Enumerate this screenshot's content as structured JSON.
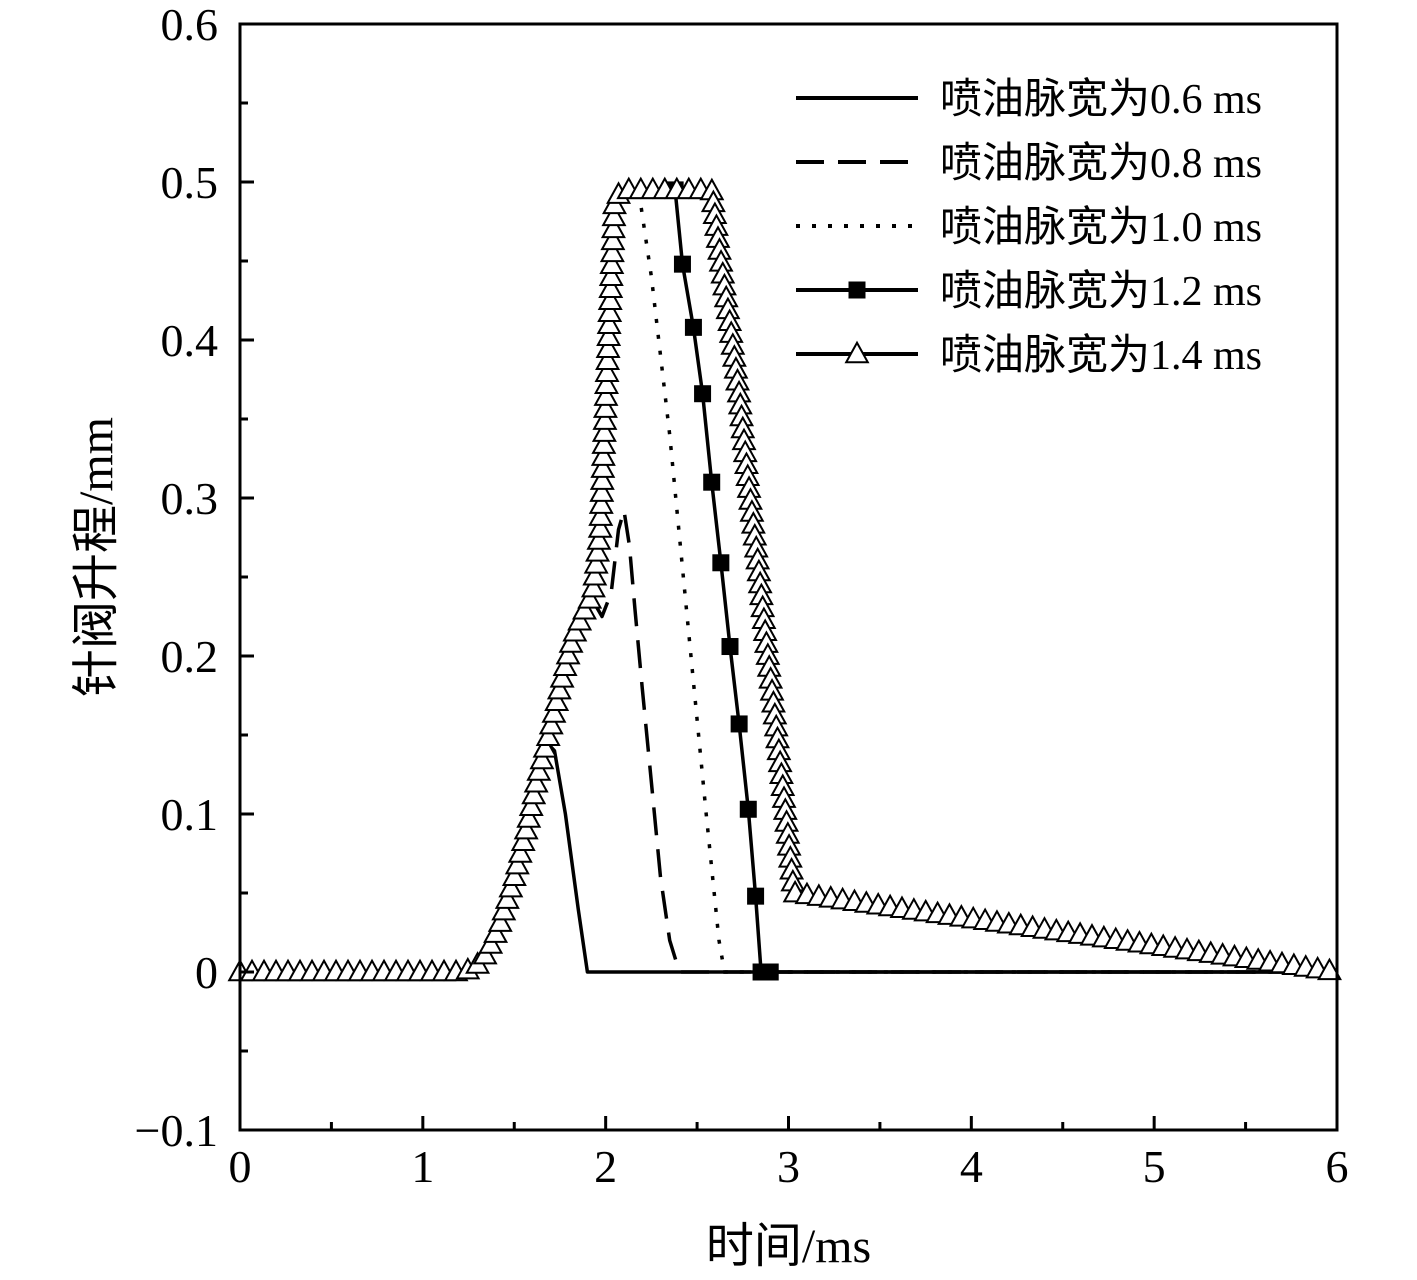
{
  "chart_data": {
    "type": "line",
    "xlabel": "时间/ms",
    "ylabel": "针阀升程/mm",
    "xlim": [
      0,
      6
    ],
    "ylim": [
      -0.1,
      0.6
    ],
    "x_major_ticks": [
      0,
      1,
      2,
      3,
      4,
      5,
      6
    ],
    "x_tick_labels": [
      "0",
      "1",
      "2",
      "3",
      "4",
      "5",
      "6"
    ],
    "y_major_ticks": [
      -0.1,
      0,
      0.1,
      0.2,
      0.3,
      0.4,
      0.5,
      0.6
    ],
    "y_tick_labels": [
      "−0.1",
      "0",
      "0.1",
      "0.2",
      "0.3",
      "0.4",
      "0.5",
      "0.6"
    ],
    "grid": false,
    "legend_position": "top-right",
    "series": [
      {
        "name": "喷油脉宽为0.6 ms",
        "line_style": "solid",
        "marker": "none",
        "x": [
          0,
          1.2,
          1.28,
          1.35,
          1.42,
          1.5,
          1.57,
          1.63,
          1.68,
          1.72,
          1.78,
          1.85,
          1.9,
          6
        ],
        "y": [
          0,
          0,
          0.002,
          0.012,
          0.03,
          0.06,
          0.092,
          0.125,
          0.145,
          0.14,
          0.1,
          0.04,
          0,
          0
        ]
      },
      {
        "name": "喷油脉宽为0.8 ms",
        "line_style": "dashed",
        "marker": "none",
        "x": [
          0,
          1.2,
          1.28,
          1.35,
          1.42,
          1.5,
          1.57,
          1.63,
          1.7,
          1.76,
          1.82,
          1.88,
          1.93,
          1.98,
          2.03,
          2.07,
          2.1,
          2.13,
          2.16,
          2.2,
          2.25,
          2.3,
          2.35,
          2.39,
          2.41,
          6
        ],
        "y": [
          0,
          0,
          0.002,
          0.012,
          0.03,
          0.06,
          0.092,
          0.125,
          0.155,
          0.185,
          0.212,
          0.228,
          0.235,
          0.225,
          0.24,
          0.28,
          0.292,
          0.27,
          0.23,
          0.18,
          0.12,
          0.06,
          0.02,
          0.005,
          0,
          0
        ]
      },
      {
        "name": "喷油脉宽为1.0 ms",
        "line_style": "dotted",
        "marker": "none",
        "x": [
          0,
          1.2,
          1.28,
          1.35,
          1.42,
          1.5,
          1.57,
          1.63,
          1.7,
          1.76,
          1.82,
          1.88,
          1.93,
          1.97,
          2.0,
          2.05,
          2.1,
          2.18,
          2.25,
          2.35,
          2.45,
          2.55,
          2.62,
          2.65,
          6
        ],
        "y": [
          0,
          0,
          0.002,
          0.012,
          0.03,
          0.06,
          0.092,
          0.125,
          0.155,
          0.185,
          0.212,
          0.228,
          0.24,
          0.28,
          0.36,
          0.49,
          0.495,
          0.495,
          0.44,
          0.34,
          0.22,
          0.1,
          0.02,
          0,
          0
        ]
      },
      {
        "name": "喷油脉宽为1.2 ms",
        "line_style": "solid",
        "marker": "filled-square",
        "x": [
          0,
          1.2,
          1.28,
          1.35,
          1.42,
          1.5,
          1.57,
          1.63,
          1.7,
          1.76,
          1.82,
          1.88,
          1.93,
          1.97,
          2.0,
          2.05,
          2.1,
          2.2,
          2.3,
          2.38,
          2.42,
          2.48,
          2.53,
          2.58,
          2.63,
          2.68,
          2.73,
          2.78,
          2.82,
          2.85,
          2.9,
          6
        ],
        "y": [
          0,
          0,
          0.002,
          0.012,
          0.03,
          0.06,
          0.092,
          0.125,
          0.155,
          0.185,
          0.212,
          0.228,
          0.24,
          0.28,
          0.36,
          0.49,
          0.495,
          0.495,
          0.495,
          0.495,
          0.448,
          0.408,
          0.366,
          0.31,
          0.259,
          0.206,
          0.157,
          0.103,
          0.048,
          0,
          0,
          0
        ]
      },
      {
        "name": "喷油脉宽为1.4 ms",
        "line_style": "solid",
        "marker": "open-triangle",
        "x": [
          0,
          1.2,
          1.28,
          1.35,
          1.42,
          1.5,
          1.57,
          1.63,
          1.7,
          1.76,
          1.82,
          1.88,
          1.93,
          1.97,
          2.0,
          2.05,
          2.1,
          2.2,
          2.3,
          2.4,
          2.5,
          2.58,
          2.63,
          2.68,
          2.73,
          2.78,
          2.83,
          2.88,
          2.93,
          2.98,
          3.03,
          6
        ],
        "y": [
          0,
          0,
          0.002,
          0.012,
          0.03,
          0.06,
          0.092,
          0.125,
          0.155,
          0.185,
          0.212,
          0.228,
          0.24,
          0.28,
          0.36,
          0.49,
          0.495,
          0.495,
          0.495,
          0.495,
          0.495,
          0.495,
          0.45,
          0.41,
          0.366,
          0.31,
          0.262,
          0.207,
          0.158,
          0.105,
          0.05,
          0
        ]
      }
    ]
  }
}
